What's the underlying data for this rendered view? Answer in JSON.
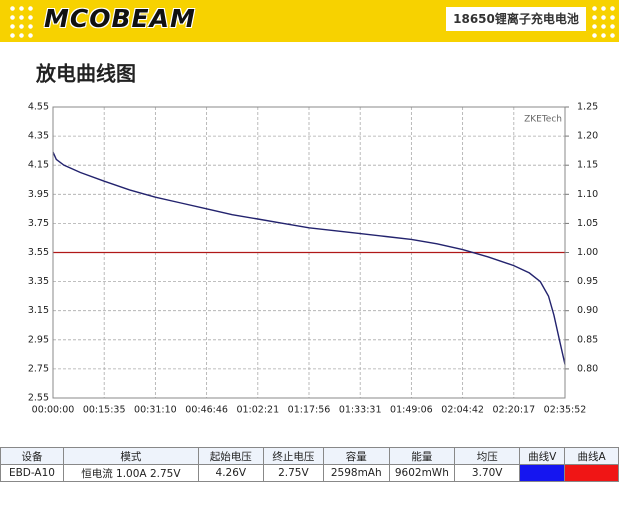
{
  "header": {
    "brand": "MCOBEAM",
    "product": "18650锂离子充电电池"
  },
  "chart_data": {
    "type": "line",
    "title": "放电曲线图",
    "watermark": "ZKETech",
    "x": [
      0,
      60,
      200,
      500,
      935,
      1400,
      1870,
      2338,
      2806,
      3274,
      3741,
      4208,
      4676,
      5144,
      5611,
      6078,
      6546,
      7014,
      7482,
      7950,
      8417,
      8700,
      8900,
      9050,
      9150,
      9250,
      9352
    ],
    "values": [
      4.24,
      4.19,
      4.15,
      4.1,
      4.04,
      3.98,
      3.93,
      3.89,
      3.85,
      3.81,
      3.78,
      3.75,
      3.72,
      3.7,
      3.68,
      3.66,
      3.64,
      3.61,
      3.57,
      3.52,
      3.46,
      3.41,
      3.35,
      3.25,
      3.12,
      2.95,
      2.78
    ],
    "color": "#23236e",
    "ref_line": {
      "value": 3.55,
      "color": "#b01818"
    },
    "xlim": [
      0,
      9352
    ],
    "xticks": [
      {
        "value": 0,
        "label": "00:00:00"
      },
      {
        "value": 935,
        "label": "00:15:35"
      },
      {
        "value": 1870,
        "label": "00:31:10"
      },
      {
        "value": 2806,
        "label": "00:46:46"
      },
      {
        "value": 3741,
        "label": "01:02:21"
      },
      {
        "value": 4676,
        "label": "01:17:56"
      },
      {
        "value": 5611,
        "label": "01:33:31"
      },
      {
        "value": 6546,
        "label": "01:49:06"
      },
      {
        "value": 7482,
        "label": "02:04:42"
      },
      {
        "value": 8417,
        "label": "02:20:17"
      },
      {
        "value": 9352,
        "label": "02:35:52"
      }
    ],
    "ylim": [
      2.55,
      4.55
    ],
    "yticks": [
      2.55,
      2.75,
      2.95,
      3.15,
      3.35,
      3.55,
      3.75,
      3.95,
      4.15,
      4.35,
      4.55
    ],
    "y2lim": [
      0.75,
      1.25
    ],
    "y2ticks": [
      {
        "value": 0.8,
        "label": "0.80"
      },
      0.85,
      {
        "value": 0.9,
        "label": "0.90"
      },
      0.95,
      {
        "value": 1,
        "label": "1.00"
      },
      1.05,
      {
        "value": 1.1,
        "label": "1.10"
      },
      1.15,
      {
        "value": 1.2,
        "label": "1.20"
      },
      1.25
    ],
    "grid": true
  },
  "table": {
    "header": [
      "设备",
      "模式",
      "起始电压",
      "终止电压",
      "容量",
      "能量",
      "均压",
      "曲线V",
      "曲线A"
    ],
    "rows": [
      [
        "EBD-A10",
        "恒电流  1.00A  2.75V",
        "4.26V",
        "2.75V",
        "2598mAh",
        "9602mWh",
        "3.70V"
      ]
    ],
    "swatches": [
      "#1515f0",
      "#f01515"
    ]
  }
}
